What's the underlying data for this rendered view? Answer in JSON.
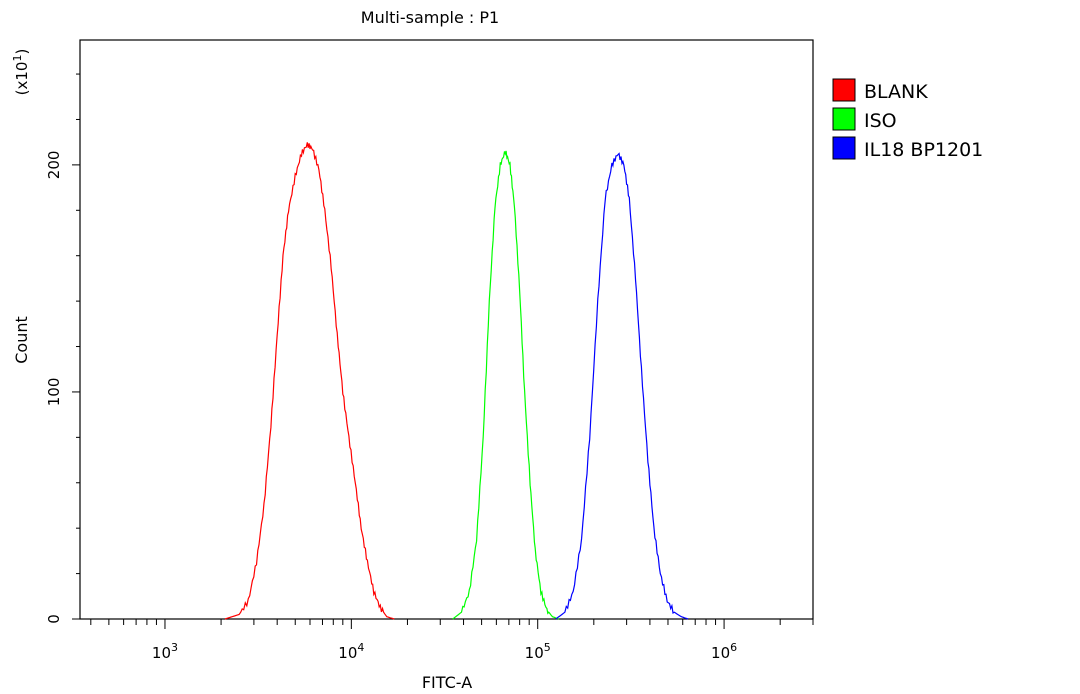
{
  "chart_data": {
    "type": "line",
    "title": "Multi-sample : P1",
    "xlabel": "FITC-A",
    "ylabel": "Count",
    "y_multiplier": "(x10",
    "y_multiplier_exp": "1",
    "y_multiplier_close": ")",
    "x_scale": "log",
    "xlim": [
      350,
      3000000
    ],
    "ylim": [
      0,
      255
    ],
    "x_ticks": [
      {
        "value": 1000,
        "base": "10",
        "exp": "3"
      },
      {
        "value": 10000,
        "base": "10",
        "exp": "4"
      },
      {
        "value": 100000,
        "base": "10",
        "exp": "5"
      },
      {
        "value": 1000000,
        "base": "10",
        "exp": "6"
      }
    ],
    "y_ticks": [
      {
        "value": 0,
        "label": "0"
      },
      {
        "value": 100,
        "label": "100"
      },
      {
        "value": 200,
        "label": "200"
      }
    ],
    "legend_position": "right-top",
    "series": [
      {
        "name": "BLANK",
        "color": "#ff0000",
        "x": [
          2100,
          2500,
          2800,
          3100,
          3400,
          3700,
          4000,
          4300,
          4600,
          5000,
          5400,
          5800,
          6200,
          6700,
          7200,
          7800,
          8400,
          9000,
          9700,
          10500,
          11300,
          12200,
          13200,
          14300,
          15500,
          17000
        ],
        "y": [
          0,
          2,
          8,
          25,
          50,
          85,
          125,
          160,
          180,
          195,
          205,
          209,
          207,
          198,
          180,
          155,
          125,
          100,
          80,
          60,
          40,
          25,
          12,
          5,
          1,
          0
        ]
      },
      {
        "name": "ISO",
        "color": "#00ff00",
        "x": [
          35000,
          39000,
          43000,
          47000,
          51000,
          55000,
          59000,
          63000,
          67000,
          71000,
          75000,
          80000,
          85000,
          91000,
          97000,
          104000,
          112000,
          120000,
          130000
        ],
        "y": [
          0,
          3,
          12,
          35,
          80,
          140,
          182,
          200,
          206,
          200,
          182,
          145,
          100,
          60,
          30,
          12,
          4,
          1,
          0
        ]
      },
      {
        "name": "IL18 BP1201",
        "color": "#0000ff",
        "x": [
          125000,
          140000,
          155000,
          172000,
          190000,
          210000,
          230000,
          250000,
          270000,
          290000,
          310000,
          335000,
          360000,
          390000,
          420000,
          455000,
          495000,
          540000,
          590000,
          640000
        ],
        "y": [
          0,
          3,
          12,
          35,
          80,
          140,
          185,
          200,
          205,
          200,
          185,
          150,
          110,
          70,
          40,
          20,
          8,
          3,
          1,
          0
        ]
      }
    ]
  }
}
